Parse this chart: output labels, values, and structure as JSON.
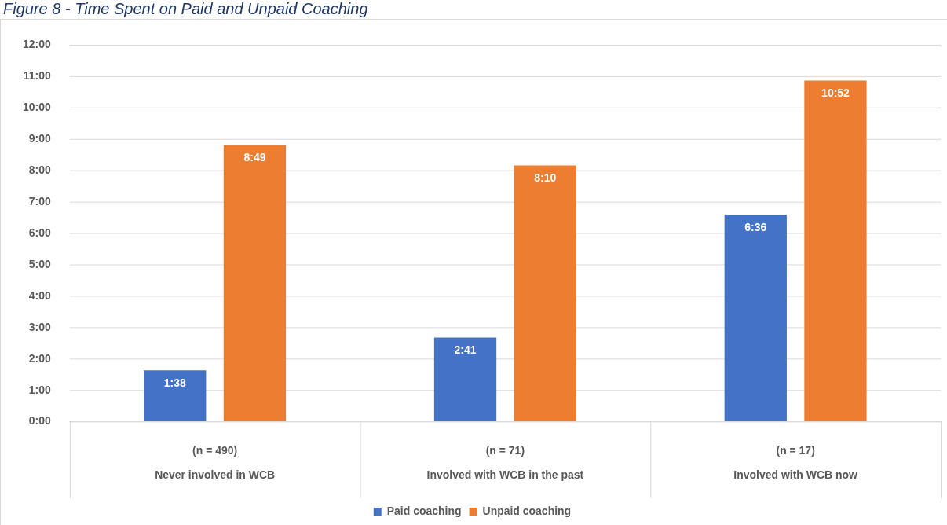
{
  "chart_data": {
    "type": "bar",
    "title": "Figure 8 - Time Spent on Paid and Unpaid Coaching",
    "categories": [
      "(n = 490)\nNever involved in WCB",
      "(n = 71)\nInvolved with WCB in the past",
      "(n = 17)\nInvolved with WCB now"
    ],
    "series": [
      {
        "name": "Paid coaching",
        "color": "#4472c4",
        "values": [
          1.6333,
          2.6833,
          6.6
        ],
        "value_labels": [
          "1:38",
          "2:41",
          "6:36"
        ]
      },
      {
        "name": "Unpaid coaching",
        "color": "#ed7d31",
        "values": [
          8.8167,
          8.1667,
          10.8667
        ],
        "value_labels": [
          "8:49",
          "8:10",
          "10:52"
        ]
      }
    ],
    "ylim": [
      0,
      12
    ],
    "yticks": [
      {
        "value": 0,
        "label": "0:00"
      },
      {
        "value": 1,
        "label": "1:00"
      },
      {
        "value": 2,
        "label": "2:00"
      },
      {
        "value": 3,
        "label": "3:00"
      },
      {
        "value": 4,
        "label": "4:00"
      },
      {
        "value": 5,
        "label": "5:00"
      },
      {
        "value": 6,
        "label": "6:00"
      },
      {
        "value": 7,
        "label": "7:00"
      },
      {
        "value": 8,
        "label": "8:00"
      },
      {
        "value": 9,
        "label": "9:00"
      },
      {
        "value": 10,
        "label": "10:00"
      },
      {
        "value": 11,
        "label": "11:00"
      },
      {
        "value": 12,
        "label": "12:00"
      }
    ],
    "grid": "y",
    "legend": "bottom"
  }
}
